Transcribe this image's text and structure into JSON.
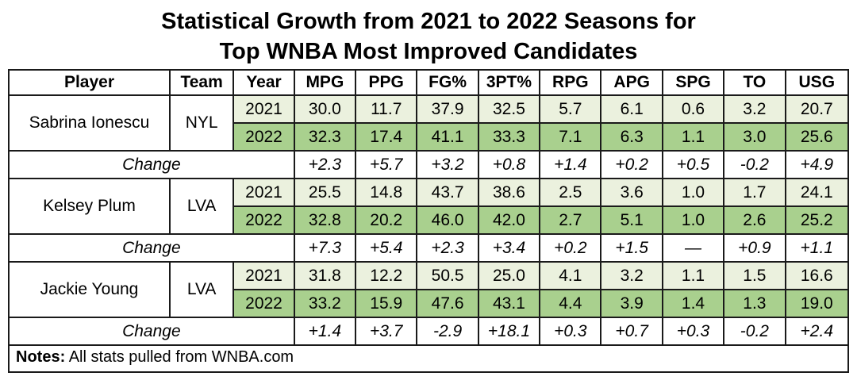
{
  "title_line1": "Statistical Growth from 2021 to 2022 Seasons for",
  "title_line2": "Top WNBA Most Improved Candidates",
  "headers": [
    "Player",
    "Team",
    "Year",
    "MPG",
    "PPG",
    "FG%",
    "3PT%",
    "RPG",
    "APG",
    "SPG",
    "TO",
    "USG"
  ],
  "colors": {
    "season_2021": "#ebf1de",
    "season_2022": "#a9d08e",
    "border": "#1a1a1a"
  },
  "change_label": "Change",
  "notes": {
    "label": "Notes:",
    "text": " All stats pulled from WNBA.com"
  },
  "chart_data": {
    "type": "table",
    "title": "Statistical Growth from 2021 to 2022 Seasons for Top WNBA Most Improved Candidates",
    "columns": [
      "Player",
      "Team",
      "Year",
      "MPG",
      "PPG",
      "FG%",
      "3PT%",
      "RPG",
      "APG",
      "SPG",
      "TO",
      "USG"
    ],
    "players": [
      {
        "name": "Sabrina Ionescu",
        "team": "NYL",
        "y2021": [
          "2021",
          "30.0",
          "11.7",
          "37.9",
          "32.5",
          "5.7",
          "6.1",
          "0.6",
          "3.2",
          "20.7"
        ],
        "y2022": [
          "2022",
          "32.3",
          "17.4",
          "41.1",
          "33.3",
          "7.1",
          "6.3",
          "1.1",
          "3.0",
          "25.6"
        ],
        "change": [
          "+2.3",
          "+5.7",
          "+3.2",
          "+0.8",
          "+1.4",
          "+0.2",
          "+0.5",
          "-0.2",
          "+4.9"
        ]
      },
      {
        "name": "Kelsey Plum",
        "team": "LVA",
        "y2021": [
          "2021",
          "25.5",
          "14.8",
          "43.7",
          "38.6",
          "2.5",
          "3.6",
          "1.0",
          "1.7",
          "24.1"
        ],
        "y2022": [
          "2022",
          "32.8",
          "20.2",
          "46.0",
          "42.0",
          "2.7",
          "5.1",
          "1.0",
          "2.6",
          "25.2"
        ],
        "change": [
          "+7.3",
          "+5.4",
          "+2.3",
          "+3.4",
          "+0.2",
          "+1.5",
          "—",
          "+0.9",
          "+1.1"
        ]
      },
      {
        "name": "Jackie Young",
        "team": "LVA",
        "y2021": [
          "2021",
          "31.8",
          "12.2",
          "50.5",
          "25.0",
          "4.1",
          "3.2",
          "1.1",
          "1.5",
          "16.6"
        ],
        "y2022": [
          "2022",
          "33.2",
          "15.9",
          "47.6",
          "43.1",
          "4.4",
          "3.9",
          "1.4",
          "1.3",
          "19.0"
        ],
        "change": [
          "+1.4",
          "+3.7",
          "-2.9",
          "+18.1",
          "+0.3",
          "+0.7",
          "+0.3",
          "-0.2",
          "+2.4"
        ]
      }
    ]
  }
}
